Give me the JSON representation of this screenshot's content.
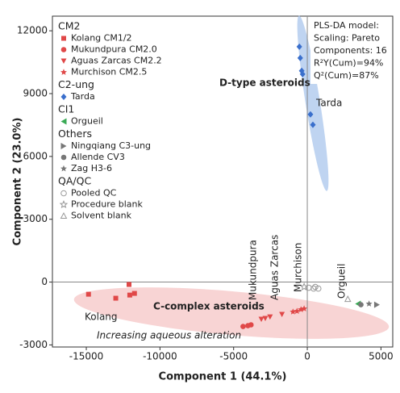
{
  "chart_data": {
    "type": "scatter",
    "x_label": "Component 1 (44.1%)",
    "y_label": "Component 2 (23.0%)",
    "xlim": [
      -17300,
      5800
    ],
    "ylim": [
      -3100,
      12700
    ],
    "xticks": [
      -15000,
      -10000,
      -5000,
      0,
      5000
    ],
    "yticks": [
      -3000,
      0,
      3000,
      6000,
      9000,
      12000
    ],
    "groups": [
      {
        "title": "CM2",
        "color": "#e04848",
        "series": [
          {
            "name": "Kolang CM1/2",
            "marker": "square",
            "color": "#e04848",
            "x": [
              -14850,
              -13000,
              -12100,
              -12050,
              -11730
            ],
            "y": [
              -580,
              -770,
              -115,
              -620,
              -540
            ]
          },
          {
            "name": "Mukundpura CM2.0",
            "marker": "circle",
            "color": "#e04848",
            "x": [
              -4360,
              -4030,
              -3820
            ],
            "y": [
              -2120,
              -2080,
              -2040
            ]
          },
          {
            "name": "Aguas Zarcas CM2.2",
            "marker": "triangle-down",
            "color": "#e04848",
            "x": [
              -3120,
              -2850,
              -2530,
              -1720
            ],
            "y": [
              -1770,
              -1730,
              -1660,
              -1540
            ]
          },
          {
            "name": "Murchison CM2.5",
            "marker": "star",
            "color": "#e04848",
            "x": [
              -970,
              -700,
              -430,
              -215
            ],
            "y": [
              -1420,
              -1390,
              -1310,
              -1270
            ]
          }
        ]
      },
      {
        "title": "C2-ung",
        "color": "#3a6fcc",
        "series": [
          {
            "name": "Tarda",
            "marker": "diamond",
            "color": "#3a6fcc",
            "x": [
              -540,
              -480,
              -380,
              -320,
              215,
              380
            ],
            "y": [
              11240,
              10700,
              10090,
              9930,
              8010,
              7510
            ]
          }
        ]
      },
      {
        "title": "CI1",
        "color": "#3aaa55",
        "series": [
          {
            "name": "Orgueil",
            "marker": "triangle-left",
            "color": "#3aaa55",
            "x": [
              3440
            ],
            "y": [
              -1040
            ]
          }
        ]
      },
      {
        "title": "Others",
        "color": "#8a8a8a",
        "series": [
          {
            "name": "Ningqiang C3-ung",
            "marker": "triangle-right",
            "color": "#777777",
            "x": [
              4730
            ],
            "y": [
              -1080
            ]
          },
          {
            "name": "Allende CV3",
            "marker": "circle",
            "color": "#777777",
            "x": [
              3640
            ],
            "y": [
              -1080
            ]
          },
          {
            "name": "Zag H3-6",
            "marker": "star",
            "color": "#777777",
            "x": [
              4190
            ],
            "y": [
              -1040
            ]
          }
        ]
      },
      {
        "title": "QA/QC",
        "color": "#222222",
        "series": [
          {
            "name": "Pooled QC",
            "marker": "open-circle",
            "color": "#999999",
            "x": [
              100,
              430,
              750,
              540
            ],
            "y": [
              -270,
              -310,
              -310,
              -230
            ]
          },
          {
            "name": "Procedure blank",
            "marker": "open-star",
            "color": "#999999",
            "x": [
              -215
            ],
            "y": [
              -230
            ]
          },
          {
            "name": "Solvent blank",
            "marker": "open-triangle",
            "color": "#999999",
            "x": [
              2750
            ],
            "y": [
              -810
            ]
          }
        ]
      }
    ],
    "model_box": [
      "PLS-DA model:",
      "Scaling: Pareto",
      "Components: 16",
      "R²Y(Cum)=94%",
      "Q²(Cum)=87%"
    ],
    "annotations": [
      {
        "text": "D-type asteroids",
        "color": "#111111"
      },
      {
        "text": "Tarda",
        "color": "#3a6fcc"
      },
      {
        "text": "C-complex asteroids",
        "color": "#111111"
      },
      {
        "text": "Kolang",
        "color": "#e04848"
      },
      {
        "text": "Mukundpura",
        "color": "#e04848"
      },
      {
        "text": "Aguas Zarcas",
        "color": "#e04848"
      },
      {
        "text": "Murchison",
        "color": "#e04848"
      },
      {
        "text": "Orgueil",
        "color": "#3aaa55"
      },
      {
        "text": "Increasing aqueous alteration",
        "color": "#222222"
      }
    ]
  }
}
